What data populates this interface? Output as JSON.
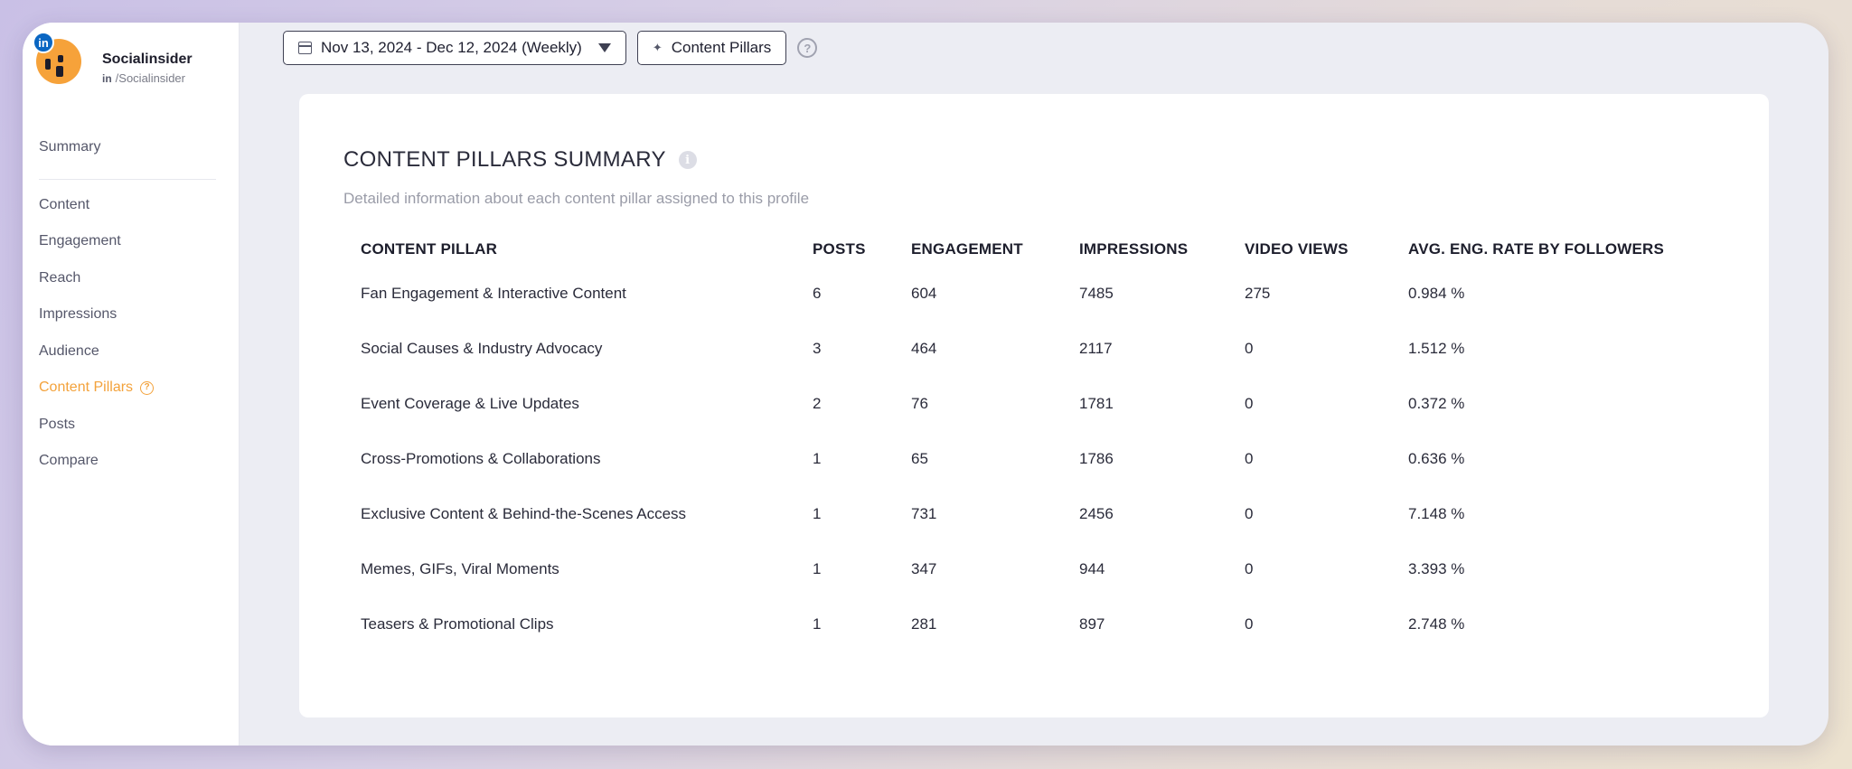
{
  "profile": {
    "name": "Socialinsider",
    "network_badge": "in",
    "handle_prefix": "in",
    "handle": "/Socialinsider"
  },
  "sidebar": {
    "items": [
      {
        "label": "Summary"
      },
      {
        "label": "Content"
      },
      {
        "label": "Engagement"
      },
      {
        "label": "Reach"
      },
      {
        "label": "Impressions"
      },
      {
        "label": "Audience"
      },
      {
        "label": "Content Pillars",
        "active": true
      },
      {
        "label": "Posts"
      },
      {
        "label": "Compare"
      }
    ],
    "help_glyph": "?"
  },
  "toolbar": {
    "date_range": "Nov 13, 2024 - Dec 12, 2024 (Weekly)",
    "pillars_button": "Content Pillars",
    "help_glyph": "?"
  },
  "card": {
    "title": "CONTENT PILLARS SUMMARY",
    "info_glyph": "i",
    "subtitle": "Detailed information about each content pillar assigned to this profile",
    "columns": [
      "CONTENT PILLAR",
      "POSTS",
      "ENGAGEMENT",
      "IMPRESSIONS",
      "VIDEO VIEWS",
      "AVG. ENG. RATE BY FOLLOWERS"
    ],
    "rows": [
      [
        "Fan Engagement & Interactive Content",
        "6",
        "604",
        "7485",
        "275",
        "0.984 %"
      ],
      [
        "Social Causes & Industry Advocacy",
        "3",
        "464",
        "2117",
        "0",
        "1.512 %"
      ],
      [
        "Event Coverage & Live Updates",
        "2",
        "76",
        "1781",
        "0",
        "0.372 %"
      ],
      [
        "Cross-Promotions & Collaborations",
        "1",
        "65",
        "1786",
        "0",
        "0.636 %"
      ],
      [
        "Exclusive Content & Behind-the-Scenes Access",
        "1",
        "731",
        "2456",
        "0",
        "7.148 %"
      ],
      [
        "Memes, GIFs, Viral Moments",
        "1",
        "347",
        "944",
        "0",
        "3.393 %"
      ],
      [
        "Teasers & Promotional Clips",
        "1",
        "281",
        "897",
        "0",
        "2.748 %"
      ]
    ]
  },
  "colors": {
    "accent": "#f3a23b",
    "linkedin": "#0a66c2",
    "avatar": "#f6a23a"
  },
  "icons": {
    "calendar": "calendar-icon",
    "caret": "caret-down-icon",
    "sparkle": "sparkle-icon",
    "help": "help-circle-icon",
    "info": "info-icon"
  }
}
